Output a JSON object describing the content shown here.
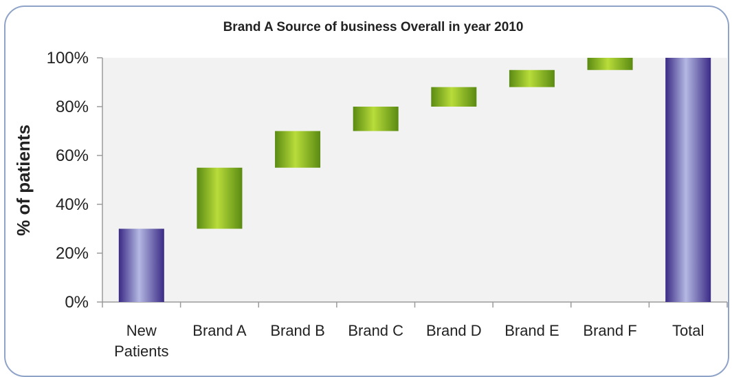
{
  "chart_data": {
    "type": "bar",
    "subtype": "waterfall",
    "title": "Brand A Source of business Overall in year 2010",
    "xlabel": "",
    "ylabel": "% of patients",
    "ylim": [
      0,
      100
    ],
    "yticks": [
      "0%",
      "20%",
      "40%",
      "60%",
      "80%",
      "100%"
    ],
    "categories": [
      "New Patients",
      "Brand A",
      "Brand B",
      "Brand C",
      "Brand D",
      "Brand E",
      "Brand F",
      "Total"
    ],
    "category_lines": [
      [
        "New",
        "Patients"
      ],
      [
        "Brand A"
      ],
      [
        "Brand B"
      ],
      [
        "Brand C"
      ],
      [
        "Brand D"
      ],
      [
        "Brand E"
      ],
      [
        "Brand F"
      ],
      [
        "Total"
      ]
    ],
    "bars": [
      {
        "category": "New Patients",
        "start": 0,
        "end": 30,
        "kind": "total"
      },
      {
        "category": "Brand A",
        "start": 30,
        "end": 55,
        "kind": "step"
      },
      {
        "category": "Brand B",
        "start": 55,
        "end": 70,
        "kind": "step"
      },
      {
        "category": "Brand C",
        "start": 70,
        "end": 80,
        "kind": "step"
      },
      {
        "category": "Brand D",
        "start": 80,
        "end": 88,
        "kind": "step"
      },
      {
        "category": "Brand E",
        "start": 88,
        "end": 95,
        "kind": "step"
      },
      {
        "category": "Brand F",
        "start": 95,
        "end": 100,
        "kind": "step"
      },
      {
        "category": "Total",
        "start": 0,
        "end": 100,
        "kind": "total"
      }
    ],
    "grid": false,
    "legend": "none",
    "colors": {
      "total_dark": "#3a2a85",
      "total_light": "#b4b8e2",
      "step_dark": "#5a8a12",
      "step_light": "#b8dc3a",
      "axis": "#9a9a9a",
      "plot_bg": "#f2f2f2"
    }
  }
}
